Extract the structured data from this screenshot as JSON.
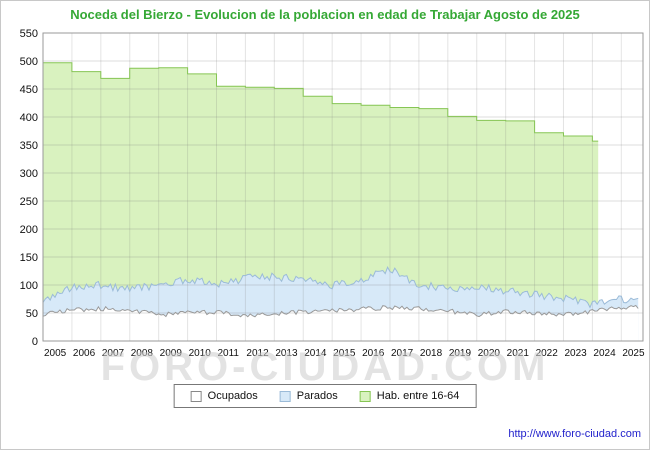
{
  "watermark": "FORO-CIUDAD.COM",
  "footer_url": "http://www.foro-ciudad.com",
  "chart_data": {
    "type": "area",
    "title": "Noceda del Bierzo - Evolucion de la poblacion en edad de Trabajar Agosto de 2025",
    "xlabel": "",
    "ylabel": "",
    "ylim": [
      0,
      550
    ],
    "ytick": 50,
    "xlim": [
      2005,
      2025.75
    ],
    "grid": true,
    "xticks": [
      2005,
      2006,
      2007,
      2008,
      2009,
      2010,
      2011,
      2012,
      2013,
      2014,
      2015,
      2016,
      2017,
      2018,
      2019,
      2020,
      2021,
      2022,
      2023,
      2024,
      2025
    ],
    "legend": {
      "position": "bottom",
      "items": [
        {
          "label": "Ocupados",
          "fill": "#ffffff",
          "border": "#888888"
        },
        {
          "label": "Parados",
          "fill": "#d7e9f8",
          "border": "#9bbbd8"
        },
        {
          "label": "Hab. entre 16-64",
          "fill": "#d9f2bf",
          "border": "#86c554"
        }
      ]
    },
    "series": [
      {
        "name": "Hab. entre 16-64",
        "style": "step",
        "years": [
          2005,
          2006,
          2007,
          2008,
          2009,
          2010,
          2011,
          2012,
          2013,
          2014,
          2015,
          2016,
          2017,
          2018,
          2019,
          2020,
          2021,
          2022,
          2023,
          2024
        ],
        "values": [
          497,
          481,
          469,
          487,
          488,
          477,
          455,
          453,
          451,
          437,
          424,
          421,
          417,
          415,
          401,
          394,
          393,
          372,
          366,
          357
        ],
        "end_x": 2024.2,
        "fill": "#d9f2bf",
        "stroke": "#86c554",
        "noise": 0
      },
      {
        "name": "Parados",
        "style": "line",
        "years": [
          2005,
          2006,
          2007,
          2008,
          2009,
          2010,
          2011,
          2012,
          2013,
          2014,
          2015,
          2016,
          2017,
          2018,
          2019,
          2020,
          2021,
          2022,
          2023,
          2024,
          2025
        ],
        "values": [
          72,
          95,
          100,
          92,
          100,
          110,
          101,
          112,
          115,
          108,
          100,
          110,
          128,
          101,
          93,
          99,
          90,
          83,
          76,
          66,
          75
        ],
        "end_x": 2025.58,
        "fill": "#d7e9f8",
        "stroke": "#9bbbd8",
        "noise": 7
      },
      {
        "name": "Ocupados",
        "style": "line",
        "years": [
          2005,
          2006,
          2007,
          2008,
          2009,
          2010,
          2011,
          2012,
          2013,
          2014,
          2015,
          2016,
          2017,
          2018,
          2019,
          2020,
          2021,
          2022,
          2023,
          2024,
          2025
        ],
        "values": [
          47,
          55,
          58,
          55,
          47,
          50,
          52,
          45,
          48,
          52,
          55,
          57,
          60,
          58,
          54,
          47,
          52,
          50,
          48,
          53,
          60
        ],
        "end_x": 2025.58,
        "fill": "#ffffff",
        "stroke": "#999999",
        "noise": 4
      }
    ]
  }
}
